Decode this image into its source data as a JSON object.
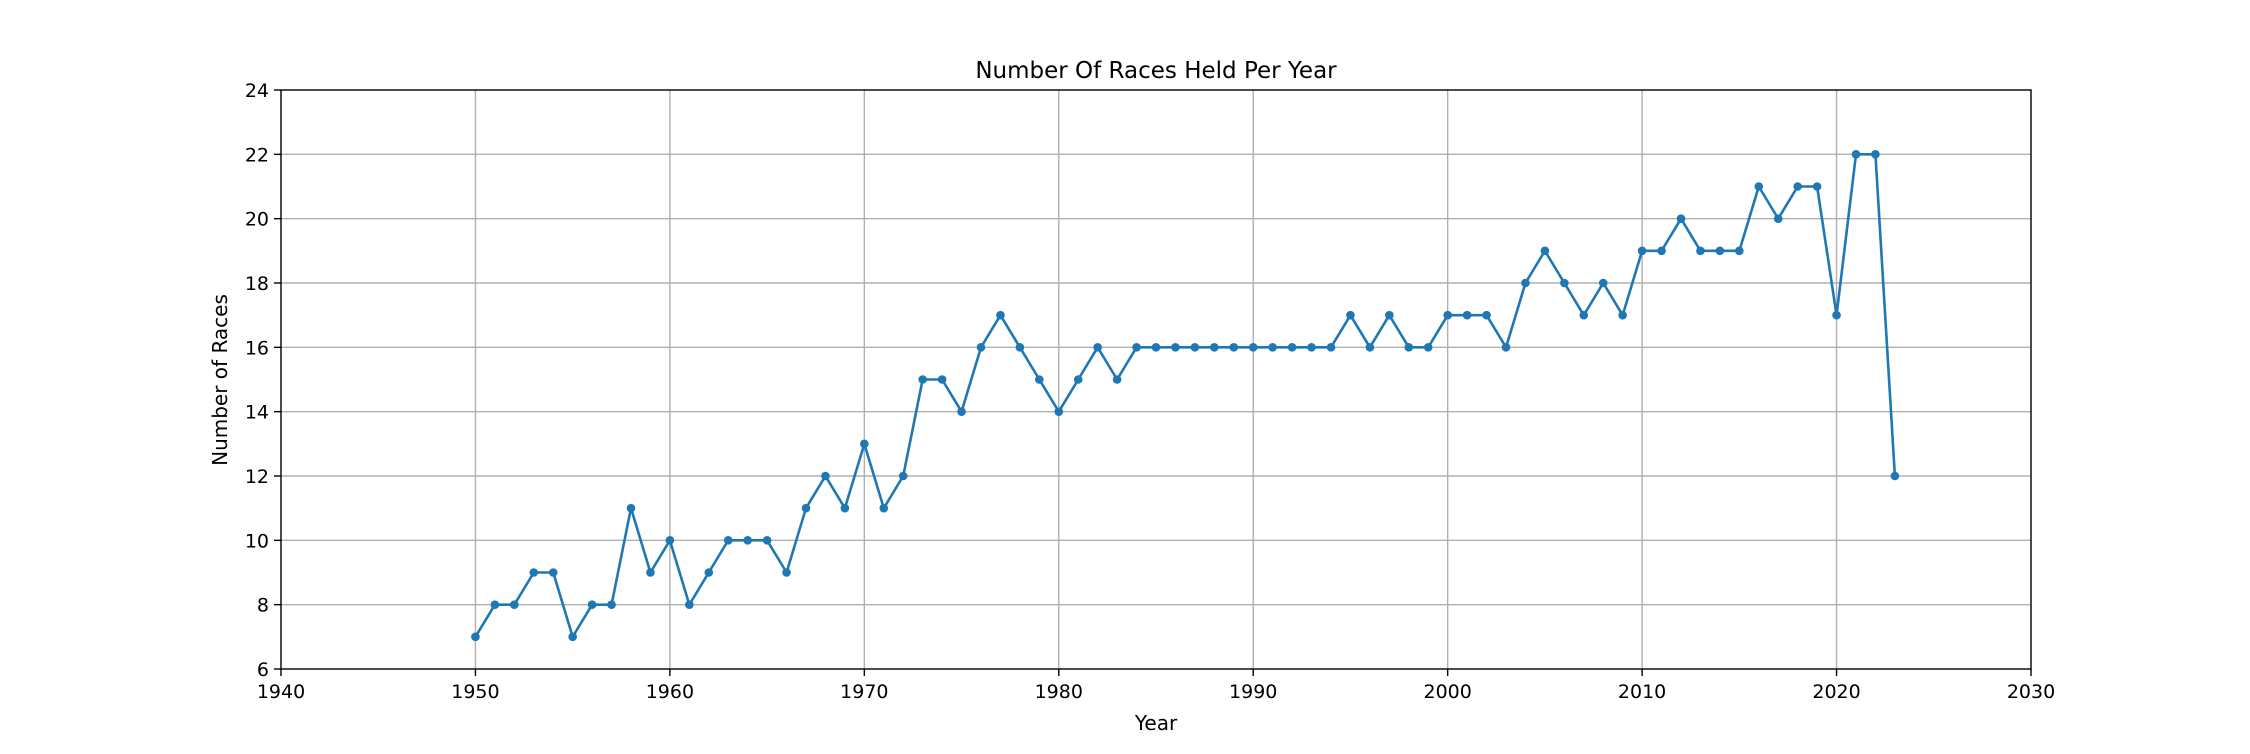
{
  "chart_data": {
    "type": "line",
    "title": "Number Of Races Held Per Year",
    "xlabel": "Year",
    "ylabel": "Number of Races",
    "xlim": [
      1940,
      2030
    ],
    "ylim": [
      6,
      24
    ],
    "xticks": [
      1940,
      1950,
      1960,
      1970,
      1980,
      1990,
      2000,
      2010,
      2020,
      2030
    ],
    "yticks": [
      6,
      8,
      10,
      12,
      14,
      16,
      18,
      20,
      22,
      24
    ],
    "grid": true,
    "line_color": "#1f77b4",
    "marker": "circle",
    "x": [
      1950,
      1951,
      1952,
      1953,
      1954,
      1955,
      1956,
      1957,
      1958,
      1959,
      1960,
      1961,
      1962,
      1963,
      1964,
      1965,
      1966,
      1967,
      1968,
      1969,
      1970,
      1971,
      1972,
      1973,
      1974,
      1975,
      1976,
      1977,
      1978,
      1979,
      1980,
      1981,
      1982,
      1983,
      1984,
      1985,
      1986,
      1987,
      1988,
      1989,
      1990,
      1991,
      1992,
      1993,
      1994,
      1995,
      1996,
      1997,
      1998,
      1999,
      2000,
      2001,
      2002,
      2003,
      2004,
      2005,
      2006,
      2007,
      2008,
      2009,
      2010,
      2011,
      2012,
      2013,
      2014,
      2015,
      2016,
      2017,
      2018,
      2019,
      2020,
      2021,
      2022,
      2023
    ],
    "y": [
      7,
      8,
      8,
      9,
      9,
      7,
      8,
      8,
      11,
      9,
      10,
      8,
      9,
      10,
      10,
      10,
      9,
      11,
      12,
      11,
      13,
      11,
      12,
      15,
      15,
      14,
      16,
      17,
      16,
      15,
      14,
      15,
      16,
      15,
      16,
      16,
      16,
      16,
      16,
      16,
      16,
      16,
      16,
      16,
      16,
      17,
      16,
      17,
      16,
      16,
      17,
      17,
      17,
      16,
      18,
      19,
      18,
      17,
      18,
      17,
      19,
      19,
      20,
      19,
      19,
      19,
      21,
      20,
      21,
      21,
      17,
      22,
      22,
      12
    ]
  }
}
